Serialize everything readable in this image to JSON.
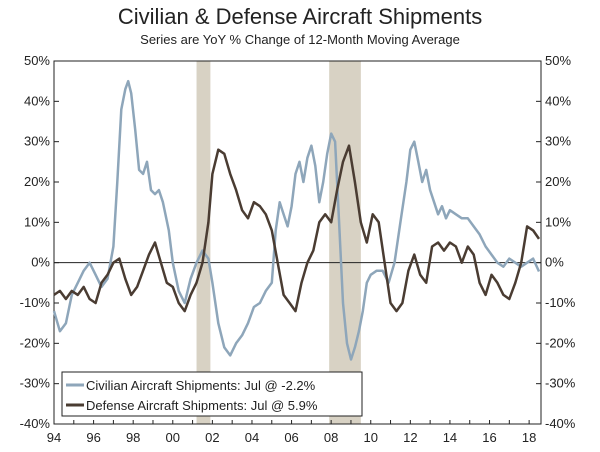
{
  "chart_data": {
    "type": "line",
    "title": "Civilian & Defense Aircraft Shipments",
    "subtitle": "Series are YoY % Change of 12-Month Moving Average",
    "xlabel": "",
    "ylabel": "",
    "xlim": [
      1994,
      2018.6
    ],
    "ylim": [
      -40,
      50
    ],
    "y_ticks": [
      -40,
      -30,
      -20,
      -10,
      0,
      10,
      20,
      30,
      40,
      50
    ],
    "y_tick_labels": [
      "-40%",
      "-30%",
      "-20%",
      "-10%",
      "0%",
      "10%",
      "20%",
      "30%",
      "40%",
      "50%"
    ],
    "x_ticks": [
      1994,
      1996,
      1998,
      2000,
      2002,
      2004,
      2006,
      2008,
      2010,
      2012,
      2014,
      2016,
      2018
    ],
    "x_tick_labels": [
      "94",
      "96",
      "98",
      "00",
      "02",
      "04",
      "06",
      "08",
      "10",
      "12",
      "14",
      "16",
      "18"
    ],
    "recessions": [
      [
        2001.2,
        2001.9
      ],
      [
        2007.9,
        2009.5
      ]
    ],
    "legend_position": "bottom-left",
    "series": [
      {
        "name": "Civilian Aircraft Shipments: Jul @ -2.2%",
        "color": "#8ea6ba",
        "x": [
          1994.0,
          1994.3,
          1994.6,
          1994.9,
          1995.2,
          1995.5,
          1995.8,
          1996.1,
          1996.4,
          1996.7,
          1997.0,
          1997.2,
          1997.4,
          1997.6,
          1997.75,
          1997.9,
          1998.1,
          1998.3,
          1998.5,
          1998.7,
          1998.9,
          1999.1,
          1999.3,
          1999.5,
          1999.8,
          2000.0,
          2000.3,
          2000.6,
          2000.9,
          2001.2,
          2001.5,
          2001.8,
          2002.0,
          2002.3,
          2002.6,
          2002.9,
          2003.2,
          2003.5,
          2003.8,
          2004.1,
          2004.4,
          2004.7,
          2005.0,
          2005.2,
          2005.4,
          2005.6,
          2005.8,
          2006.0,
          2006.2,
          2006.4,
          2006.6,
          2006.8,
          2007.0,
          2007.2,
          2007.4,
          2007.6,
          2007.8,
          2008.0,
          2008.2,
          2008.4,
          2008.6,
          2008.8,
          2009.0,
          2009.2,
          2009.4,
          2009.6,
          2009.8,
          2010.0,
          2010.3,
          2010.6,
          2010.9,
          2011.2,
          2011.5,
          2011.8,
          2012.0,
          2012.2,
          2012.4,
          2012.6,
          2012.8,
          2013.0,
          2013.2,
          2013.4,
          2013.6,
          2013.8,
          2014.0,
          2014.3,
          2014.6,
          2014.9,
          2015.2,
          2015.5,
          2015.8,
          2016.1,
          2016.4,
          2016.7,
          2017.0,
          2017.3,
          2017.6,
          2017.9,
          2018.2,
          2018.5
        ],
        "values": [
          -12,
          -17,
          -15,
          -8,
          -5,
          -2,
          0,
          -3,
          -6,
          -4,
          4,
          20,
          38,
          43,
          45,
          42,
          33,
          23,
          22,
          25,
          18,
          17,
          18,
          15,
          8,
          0,
          -7,
          -10,
          -4,
          0,
          3,
          1,
          -5,
          -15,
          -21,
          -23,
          -20,
          -18,
          -15,
          -11,
          -10,
          -7,
          -5,
          8,
          15,
          12,
          9,
          14,
          22,
          25,
          20,
          26,
          29,
          24,
          15,
          20,
          27,
          32,
          30,
          10,
          -10,
          -20,
          -24,
          -21,
          -17,
          -12,
          -5,
          -3,
          -2,
          -2,
          -5,
          0,
          10,
          20,
          28,
          30,
          25,
          20,
          23,
          18,
          15,
          12,
          14,
          11,
          13,
          12,
          11,
          11,
          9,
          7,
          4,
          2,
          0,
          -1,
          1,
          0,
          -1,
          0,
          1,
          -2.2
        ]
      },
      {
        "name": "Defense Aircraft Shipments: Jul @ 5.9%",
        "color": "#4a3c32",
        "x": [
          1994.0,
          1994.3,
          1994.6,
          1994.9,
          1995.2,
          1995.5,
          1995.8,
          1996.1,
          1996.4,
          1996.7,
          1997.0,
          1997.3,
          1997.6,
          1997.9,
          1998.2,
          1998.5,
          1998.8,
          1999.1,
          1999.4,
          1999.7,
          2000.0,
          2000.3,
          2000.6,
          2000.9,
          2001.2,
          2001.5,
          2001.8,
          2002.0,
          2002.3,
          2002.6,
          2002.9,
          2003.2,
          2003.5,
          2003.8,
          2004.1,
          2004.4,
          2004.7,
          2005.0,
          2005.3,
          2005.6,
          2005.9,
          2006.2,
          2006.5,
          2006.8,
          2007.1,
          2007.4,
          2007.7,
          2008.0,
          2008.3,
          2008.6,
          2008.9,
          2009.2,
          2009.5,
          2009.8,
          2010.1,
          2010.4,
          2010.7,
          2011.0,
          2011.3,
          2011.6,
          2011.9,
          2012.2,
          2012.5,
          2012.8,
          2013.1,
          2013.4,
          2013.7,
          2014.0,
          2014.3,
          2014.6,
          2014.9,
          2015.2,
          2015.5,
          2015.8,
          2016.1,
          2016.4,
          2016.7,
          2017.0,
          2017.3,
          2017.6,
          2017.9,
          2018.2,
          2018.5
        ],
        "values": [
          -8,
          -7,
          -9,
          -7,
          -8,
          -6,
          -9,
          -10,
          -5,
          -3,
          0,
          1,
          -4,
          -8,
          -6,
          -2,
          2,
          5,
          0,
          -5,
          -6,
          -10,
          -12,
          -8,
          -5,
          0,
          10,
          22,
          28,
          27,
          22,
          18,
          13,
          11,
          15,
          14,
          12,
          8,
          0,
          -8,
          -10,
          -12,
          -5,
          0,
          3,
          10,
          12,
          10,
          18,
          25,
          29,
          20,
          10,
          5,
          12,
          10,
          0,
          -10,
          -12,
          -10,
          -2,
          2,
          -3,
          -5,
          4,
          5,
          3,
          5,
          4,
          0,
          4,
          2,
          -5,
          -8,
          -3,
          -5,
          -8,
          -9,
          -5,
          0,
          9,
          8,
          5.9
        ]
      }
    ]
  }
}
